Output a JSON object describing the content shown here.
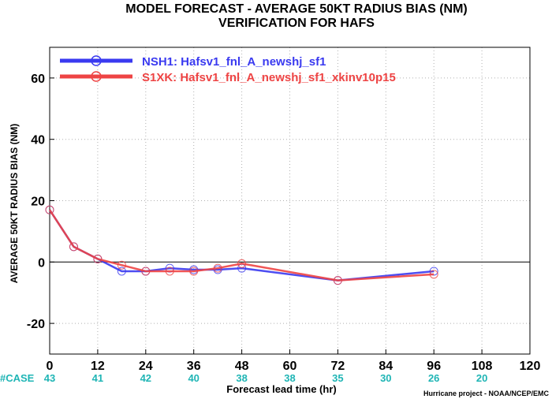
{
  "chart_data": {
    "type": "line",
    "title": "MODEL FORECAST - AVERAGE 50KT RADIUS BIAS (NM)",
    "subtitle": "VERIFICATION FOR HAFS",
    "xlabel": "Forecast lead time (hr)",
    "ylabel": "AVERAGE 50KT RADIUS BIAS (NM)",
    "xlim": [
      0,
      120
    ],
    "ylim": [
      -30,
      70
    ],
    "x_ticks": [
      "0",
      "12",
      "24",
      "36",
      "48",
      "60",
      "72",
      "84",
      "96",
      "108",
      "120"
    ],
    "y_ticks": [
      "-20",
      "0",
      "20",
      "40",
      "60"
    ],
    "grid": true,
    "legend_position": "top-left",
    "zero_line": true,
    "series": [
      {
        "name": "NSH1: Hafsv1_fnl_A_newshj_sf1",
        "color": "#3a3af0",
        "x": [
          0,
          6,
          12,
          18,
          24,
          30,
          36,
          42,
          48,
          72,
          96
        ],
        "y": [
          17,
          5,
          1,
          -3,
          -3,
          -2,
          -2.5,
          -2.5,
          -2,
          -6,
          -3
        ]
      },
      {
        "name": "S1XK: Hafsv1_fnl_A_newshj_sf1_xkinv10p15",
        "color": "#ee4444",
        "x": [
          0,
          6,
          12,
          18,
          24,
          30,
          36,
          42,
          48,
          72,
          96
        ],
        "y": [
          17,
          5,
          1,
          -1,
          -3,
          -3,
          -3,
          -2,
          -0.5,
          -6,
          -4
        ]
      }
    ],
    "case_label": "#CASE",
    "case_counts": [
      {
        "x": 0,
        "label": "43"
      },
      {
        "x": 12,
        "label": "41"
      },
      {
        "x": 24,
        "label": "42"
      },
      {
        "x": 36,
        "label": "40"
      },
      {
        "x": 48,
        "label": "38"
      },
      {
        "x": 60,
        "label": "38"
      },
      {
        "x": 72,
        "label": "35"
      },
      {
        "x": 84,
        "label": "30"
      },
      {
        "x": 96,
        "label": "26"
      },
      {
        "x": 108,
        "label": "20"
      }
    ],
    "case_color": "#1fb5b5",
    "credit": "Hurricane project - NOAA/NCEP/EMC"
  }
}
